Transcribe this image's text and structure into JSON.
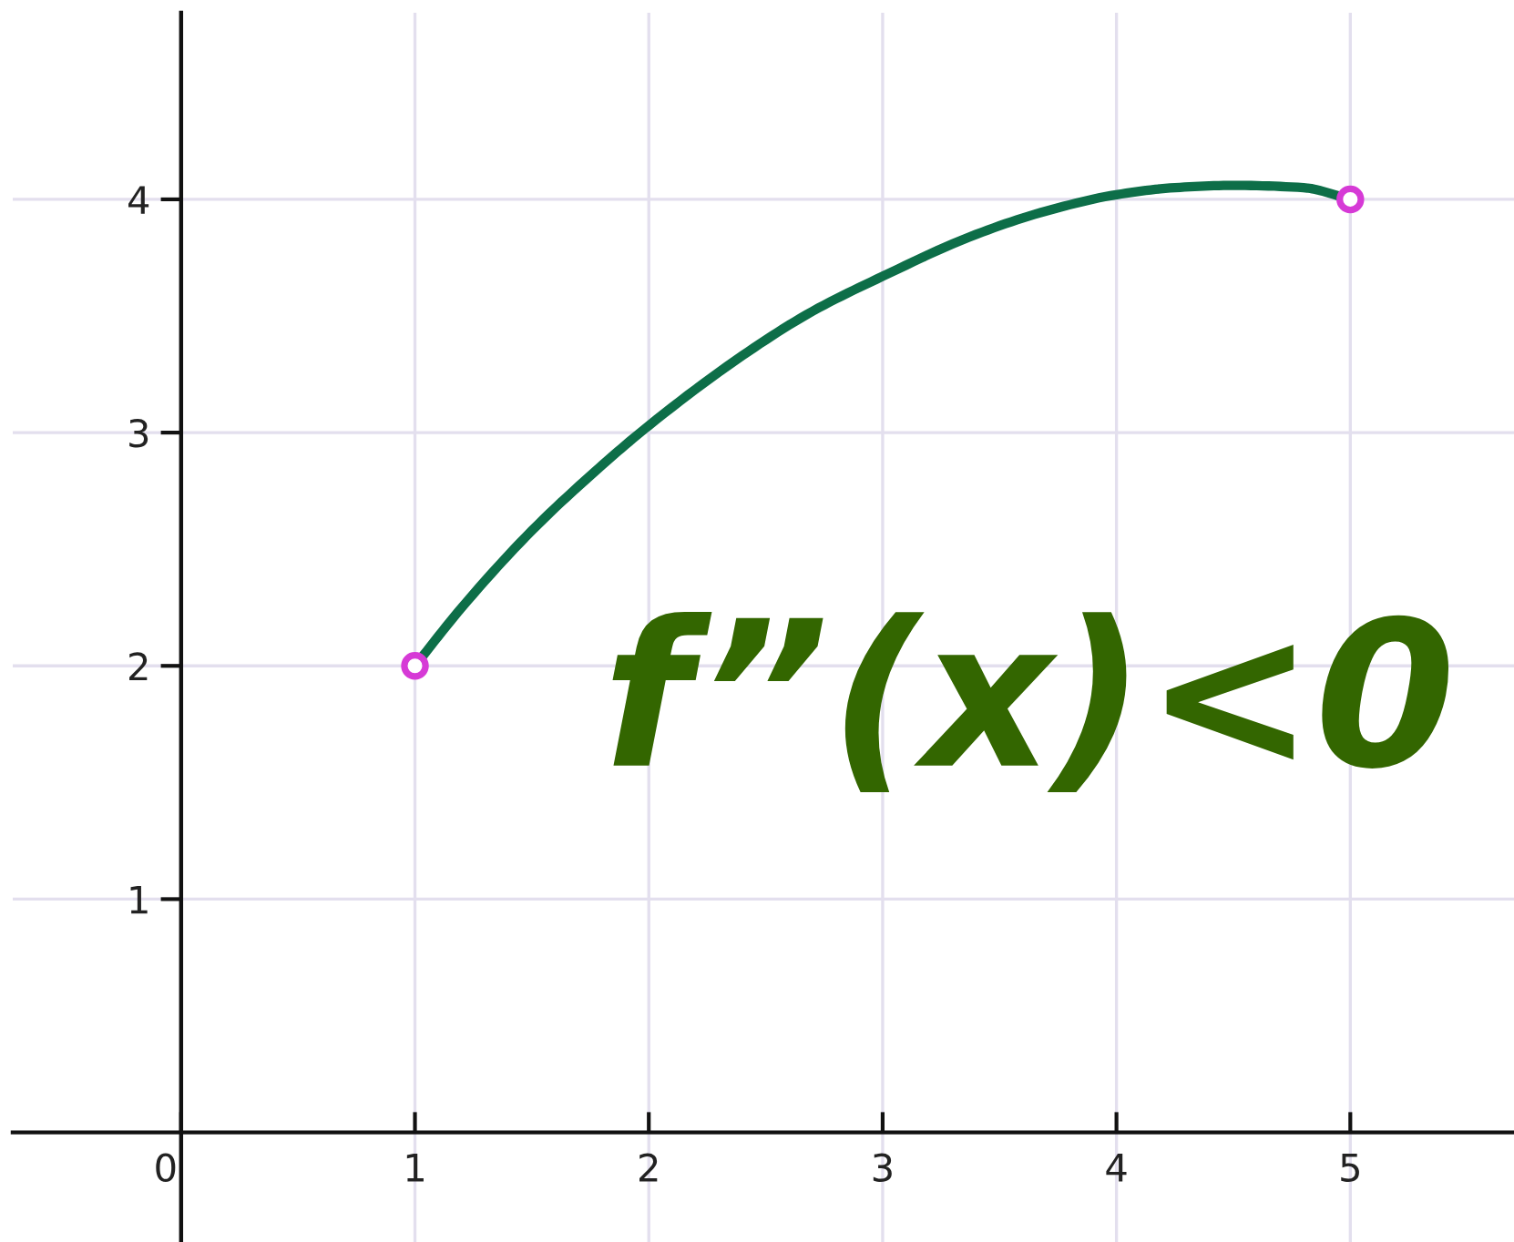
{
  "chart_data": {
    "type": "line",
    "series": [
      {
        "type": "line",
        "color": "#0d6e48",
        "x": [
          1,
          1.2,
          1.5,
          1.8,
          2,
          2.4,
          2.7,
          3,
          3.4,
          3.7,
          4,
          4.25,
          4.5,
          4.8,
          5
        ],
        "values": [
          2,
          2.25,
          2.58,
          2.86,
          3.03,
          3.33,
          3.52,
          3.67,
          3.85,
          3.95,
          4.02,
          4.05,
          4.06,
          4.05,
          4.0
        ]
      },
      {
        "type": "scatter",
        "color": "#d63ad6",
        "marker": "circle",
        "x": [
          1,
          5
        ],
        "values": [
          2,
          4
        ]
      }
    ],
    "xlim": [
      -0.72,
      5.7
    ],
    "ylim": [
      -0.47,
      4.8
    ],
    "xticks": [
      0,
      1,
      2,
      3,
      4,
      5
    ],
    "yticks": [
      1,
      2,
      3,
      4
    ],
    "grid": true,
    "annotations": [
      "f”(x)<0"
    ]
  }
}
